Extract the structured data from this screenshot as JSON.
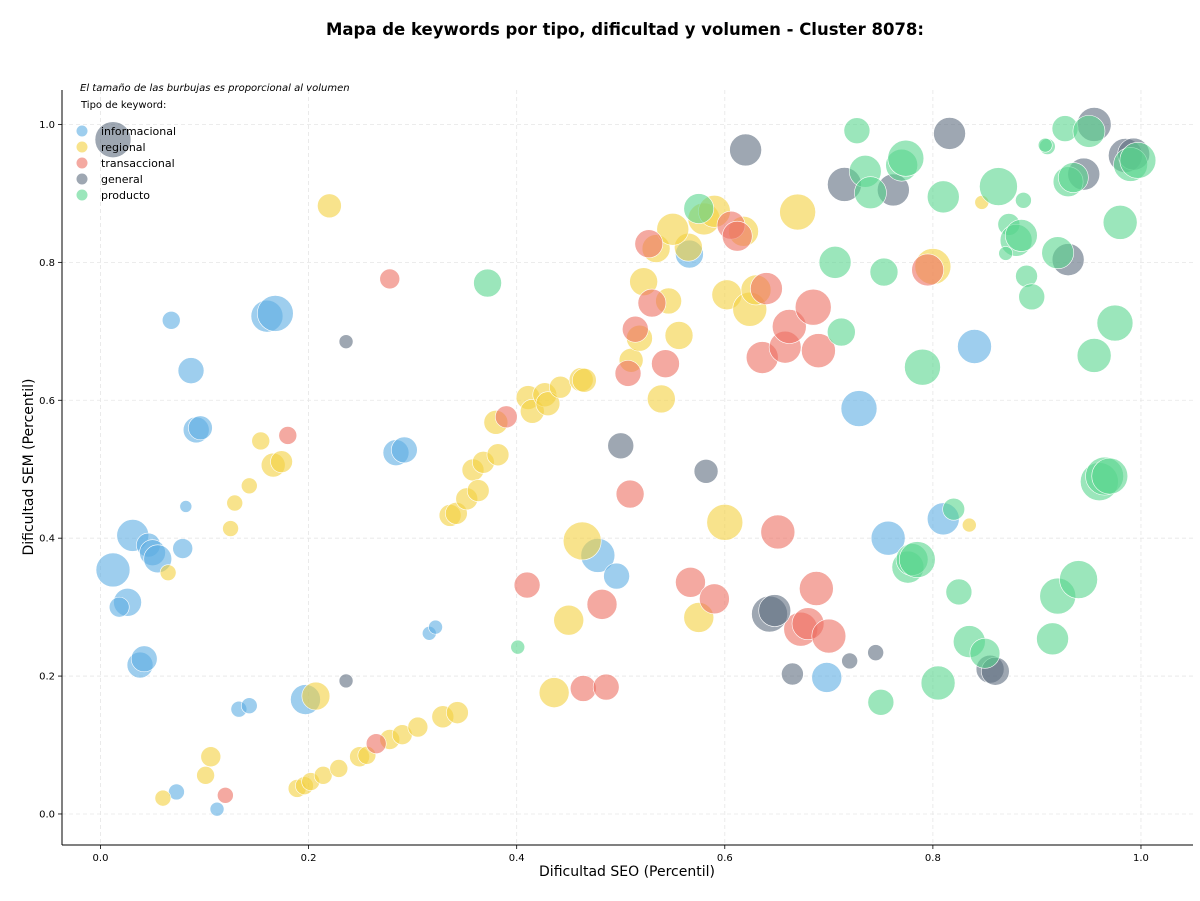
{
  "chart_data": {
    "type": "scatter",
    "title": "Mapa de keywords por tipo, dificultad y volumen - Cluster 8078:",
    "xlabel": "Dificultad SEO (Percentil)",
    "ylabel": "Dificultad SEM (Percentil)",
    "xlim": [
      -0.037,
      1.05
    ],
    "ylim": [
      -0.045,
      1.05
    ],
    "xticks": [
      "0.0",
      "0.2",
      "0.4",
      "0.6",
      "0.8",
      "1.0"
    ],
    "yticks": [
      "0.0",
      "0.2",
      "0.4",
      "0.6",
      "0.8",
      "1.0"
    ],
    "grid": true,
    "note": "El tamaño de las burbujas es proporcional al volumen",
    "legend_title": "Tipo de keyword:",
    "legend_position": "top-left",
    "series": [
      {
        "name": "informacional",
        "color": "#5dade2",
        "points": [
          [
            0.012,
            0.354,
            17
          ],
          [
            0.026,
            0.307,
            14
          ],
          [
            0.031,
            0.404,
            16
          ],
          [
            0.038,
            0.216,
            13
          ],
          [
            0.042,
            0.225,
            13
          ],
          [
            0.046,
            0.39,
            12
          ],
          [
            0.05,
            0.379,
            13
          ],
          [
            0.055,
            0.37,
            14
          ],
          [
            0.068,
            0.716,
            9
          ],
          [
            0.073,
            0.032,
            8
          ],
          [
            0.079,
            0.385,
            10
          ],
          [
            0.082,
            0.446,
            6
          ],
          [
            0.087,
            0.643,
            13
          ],
          [
            0.092,
            0.557,
            13
          ],
          [
            0.096,
            0.56,
            12
          ],
          [
            0.112,
            0.007,
            7
          ],
          [
            0.133,
            0.152,
            8
          ],
          [
            0.143,
            0.157,
            8
          ],
          [
            0.16,
            0.722,
            16
          ],
          [
            0.168,
            0.726,
            18
          ],
          [
            0.197,
            0.166,
            15
          ],
          [
            0.284,
            0.524,
            13
          ],
          [
            0.292,
            0.528,
            13
          ],
          [
            0.316,
            0.262,
            7
          ],
          [
            0.322,
            0.271,
            7
          ],
          [
            0.478,
            0.375,
            17
          ],
          [
            0.496,
            0.345,
            13
          ],
          [
            0.566,
            0.812,
            14
          ],
          [
            0.698,
            0.198,
            15
          ],
          [
            0.729,
            0.588,
            18
          ],
          [
            0.757,
            0.4,
            17
          ],
          [
            0.81,
            0.428,
            16
          ],
          [
            0.84,
            0.678,
            17
          ],
          [
            0.018,
            0.3,
            10
          ]
        ]
      },
      {
        "name": "regional",
        "color": "#f4d03f",
        "points": [
          [
            0.06,
            0.023,
            8
          ],
          [
            0.065,
            0.35,
            8
          ],
          [
            0.101,
            0.056,
            9
          ],
          [
            0.106,
            0.083,
            10
          ],
          [
            0.125,
            0.414,
            8
          ],
          [
            0.129,
            0.451,
            8
          ],
          [
            0.143,
            0.476,
            8
          ],
          [
            0.154,
            0.541,
            9
          ],
          [
            0.166,
            0.506,
            12
          ],
          [
            0.174,
            0.511,
            11
          ],
          [
            0.189,
            0.037,
            9
          ],
          [
            0.196,
            0.041,
            9
          ],
          [
            0.202,
            0.047,
            9
          ],
          [
            0.207,
            0.171,
            14
          ],
          [
            0.214,
            0.056,
            9
          ],
          [
            0.22,
            0.882,
            12
          ],
          [
            0.229,
            0.066,
            9
          ],
          [
            0.249,
            0.083,
            10
          ],
          [
            0.256,
            0.085,
            9
          ],
          [
            0.278,
            0.108,
            10
          ],
          [
            0.29,
            0.115,
            10
          ],
          [
            0.305,
            0.126,
            10
          ],
          [
            0.329,
            0.141,
            11
          ],
          [
            0.336,
            0.433,
            11
          ],
          [
            0.342,
            0.436,
            11
          ],
          [
            0.343,
            0.147,
            11
          ],
          [
            0.352,
            0.457,
            11
          ],
          [
            0.358,
            0.499,
            11
          ],
          [
            0.363,
            0.469,
            11
          ],
          [
            0.368,
            0.51,
            11
          ],
          [
            0.38,
            0.568,
            12
          ],
          [
            0.382,
            0.521,
            11
          ],
          [
            0.411,
            0.604,
            12
          ],
          [
            0.415,
            0.584,
            12
          ],
          [
            0.427,
            0.608,
            12
          ],
          [
            0.43,
            0.595,
            12
          ],
          [
            0.442,
            0.619,
            11
          ],
          [
            0.45,
            0.281,
            15
          ],
          [
            0.462,
            0.63,
            12
          ],
          [
            0.465,
            0.629,
            12
          ],
          [
            0.51,
            0.658,
            12
          ],
          [
            0.518,
            0.69,
            13
          ],
          [
            0.522,
            0.772,
            14
          ],
          [
            0.534,
            0.82,
            14
          ],
          [
            0.539,
            0.602,
            14
          ],
          [
            0.546,
            0.744,
            13
          ],
          [
            0.556,
            0.694,
            14
          ],
          [
            0.565,
            0.822,
            14
          ],
          [
            0.575,
            0.285,
            15
          ],
          [
            0.58,
            0.863,
            16
          ],
          [
            0.59,
            0.874,
            16
          ],
          [
            0.6,
            0.423,
            18
          ],
          [
            0.602,
            0.753,
            15
          ],
          [
            0.618,
            0.845,
            15
          ],
          [
            0.624,
            0.732,
            17
          ],
          [
            0.63,
            0.76,
            15
          ],
          [
            0.67,
            0.873,
            18
          ],
          [
            0.8,
            0.794,
            18
          ],
          [
            0.835,
            0.419,
            7
          ],
          [
            0.847,
            0.887,
            7
          ],
          [
            0.436,
            0.176,
            15
          ],
          [
            0.463,
            0.396,
            19
          ],
          [
            0.55,
            0.848,
            16
          ]
        ]
      },
      {
        "name": "transaccional",
        "color": "#ec7063",
        "points": [
          [
            0.12,
            0.027,
            8
          ],
          [
            0.278,
            0.776,
            10
          ],
          [
            0.41,
            0.332,
            13
          ],
          [
            0.464,
            0.182,
            13
          ],
          [
            0.482,
            0.304,
            15
          ],
          [
            0.486,
            0.184,
            13
          ],
          [
            0.507,
            0.639,
            13
          ],
          [
            0.509,
            0.464,
            14
          ],
          [
            0.514,
            0.703,
            13
          ],
          [
            0.527,
            0.827,
            14
          ],
          [
            0.53,
            0.741,
            14
          ],
          [
            0.543,
            0.653,
            14
          ],
          [
            0.567,
            0.336,
            15
          ],
          [
            0.59,
            0.312,
            15
          ],
          [
            0.606,
            0.854,
            14
          ],
          [
            0.612,
            0.838,
            15
          ],
          [
            0.636,
            0.662,
            16
          ],
          [
            0.64,
            0.762,
            16
          ],
          [
            0.651,
            0.409,
            17
          ],
          [
            0.658,
            0.677,
            16
          ],
          [
            0.662,
            0.707,
            17
          ],
          [
            0.673,
            0.268,
            17
          ],
          [
            0.68,
            0.276,
            16
          ],
          [
            0.685,
            0.735,
            18
          ],
          [
            0.688,
            0.327,
            17
          ],
          [
            0.69,
            0.672,
            17
          ],
          [
            0.7,
            0.258,
            17
          ],
          [
            0.795,
            0.789,
            16
          ],
          [
            0.39,
            0.576,
            11
          ],
          [
            0.265,
            0.102,
            10
          ],
          [
            0.18,
            0.549,
            9
          ]
        ]
      },
      {
        "name": "general",
        "color": "#5d6d7e",
        "points": [
          [
            0.012,
            0.978,
            18
          ],
          [
            0.236,
            0.685,
            7
          ],
          [
            0.236,
            0.193,
            7
          ],
          [
            0.5,
            0.534,
            13
          ],
          [
            0.582,
            0.497,
            12
          ],
          [
            0.62,
            0.963,
            16
          ],
          [
            0.643,
            0.29,
            18
          ],
          [
            0.648,
            0.295,
            16
          ],
          [
            0.665,
            0.203,
            11
          ],
          [
            0.715,
            0.913,
            17
          ],
          [
            0.72,
            0.222,
            8
          ],
          [
            0.745,
            0.234,
            8
          ],
          [
            0.762,
            0.905,
            16
          ],
          [
            0.816,
            0.987,
            16
          ],
          [
            0.855,
            0.21,
            14
          ],
          [
            0.86,
            0.207,
            14
          ],
          [
            0.93,
            0.804,
            16
          ],
          [
            0.945,
            0.928,
            16
          ],
          [
            0.955,
            1.0,
            17
          ],
          [
            0.985,
            0.955,
            17
          ],
          [
            0.993,
            0.957,
            16
          ]
        ]
      },
      {
        "name": "producto",
        "color": "#58d68d",
        "points": [
          [
            0.372,
            0.77,
            14
          ],
          [
            0.401,
            0.242,
            7
          ],
          [
            0.575,
            0.878,
            15
          ],
          [
            0.706,
            0.8,
            16
          ],
          [
            0.712,
            0.699,
            14
          ],
          [
            0.727,
            0.991,
            13
          ],
          [
            0.735,
            0.932,
            16
          ],
          [
            0.74,
            0.901,
            16
          ],
          [
            0.75,
            0.162,
            13
          ],
          [
            0.753,
            0.786,
            14
          ],
          [
            0.77,
            0.941,
            16
          ],
          [
            0.774,
            0.951,
            18
          ],
          [
            0.776,
            0.358,
            16
          ],
          [
            0.78,
            0.369,
            16
          ],
          [
            0.785,
            0.369,
            18
          ],
          [
            0.79,
            0.648,
            18
          ],
          [
            0.805,
            0.19,
            17
          ],
          [
            0.81,
            0.895,
            16
          ],
          [
            0.82,
            0.442,
            11
          ],
          [
            0.825,
            0.322,
            13
          ],
          [
            0.835,
            0.25,
            16
          ],
          [
            0.85,
            0.233,
            15
          ],
          [
            0.863,
            0.91,
            19
          ],
          [
            0.873,
            0.855,
            11
          ],
          [
            0.88,
            0.832,
            16
          ],
          [
            0.885,
            0.839,
            16
          ],
          [
            0.887,
            0.89,
            8
          ],
          [
            0.89,
            0.78,
            11
          ],
          [
            0.895,
            0.75,
            13
          ],
          [
            0.92,
            0.814,
            16
          ],
          [
            0.91,
            0.968,
            8
          ],
          [
            0.927,
            0.994,
            13
          ],
          [
            0.93,
            0.917,
            15
          ],
          [
            0.935,
            0.923,
            15
          ],
          [
            0.908,
            0.97,
            7
          ],
          [
            0.915,
            0.254,
            16
          ],
          [
            0.92,
            0.316,
            18
          ],
          [
            0.94,
            0.34,
            19
          ],
          [
            0.95,
            0.99,
            16
          ],
          [
            0.955,
            0.665,
            17
          ],
          [
            0.96,
            0.482,
            19
          ],
          [
            0.965,
            0.49,
            19
          ],
          [
            0.97,
            0.49,
            18
          ],
          [
            0.975,
            0.712,
            18
          ],
          [
            0.98,
            0.858,
            17
          ],
          [
            0.99,
            0.942,
            17
          ],
          [
            0.997,
            0.948,
            18
          ],
          [
            0.87,
            0.813,
            7
          ]
        ]
      }
    ]
  }
}
